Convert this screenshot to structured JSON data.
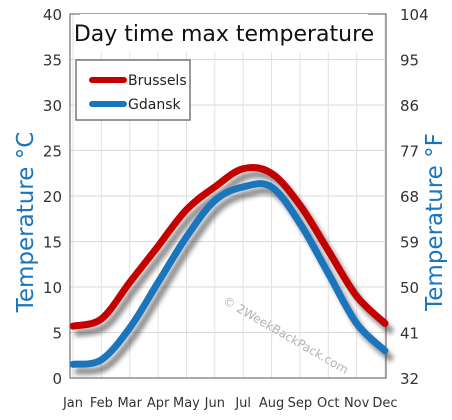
{
  "chart_data": {
    "type": "line",
    "title": "Day time max temperature",
    "categories": [
      "Jan",
      "Feb",
      "Mar",
      "Apr",
      "May",
      "Jun",
      "Jul",
      "Aug",
      "Sep",
      "Oct",
      "Nov",
      "Dec"
    ],
    "series": [
      {
        "name": "Brussels",
        "color": "#c40000",
        "values": [
          5.7,
          6.5,
          10.5,
          14.5,
          18.5,
          21.0,
          23.0,
          22.5,
          19.0,
          14.0,
          9.0,
          6.0
        ]
      },
      {
        "name": "Gdansk",
        "color": "#1a75bc",
        "values": [
          1.5,
          2.0,
          5.5,
          10.5,
          15.5,
          19.5,
          21.0,
          21.0,
          17.0,
          11.5,
          6.0,
          3.0
        ]
      }
    ],
    "ylabel": "Temperature °C",
    "ylabel_right": "Temperature °F",
    "ylim": [
      0,
      40
    ],
    "y_ticks": [
      0,
      5,
      10,
      15,
      20,
      25,
      30,
      35,
      40
    ],
    "y2_ticks": [
      32,
      41,
      50,
      59,
      68,
      77,
      86,
      95,
      104
    ],
    "grid": true,
    "legend_position": "top-left",
    "watermark": "© 2WeekBackPack.com"
  }
}
